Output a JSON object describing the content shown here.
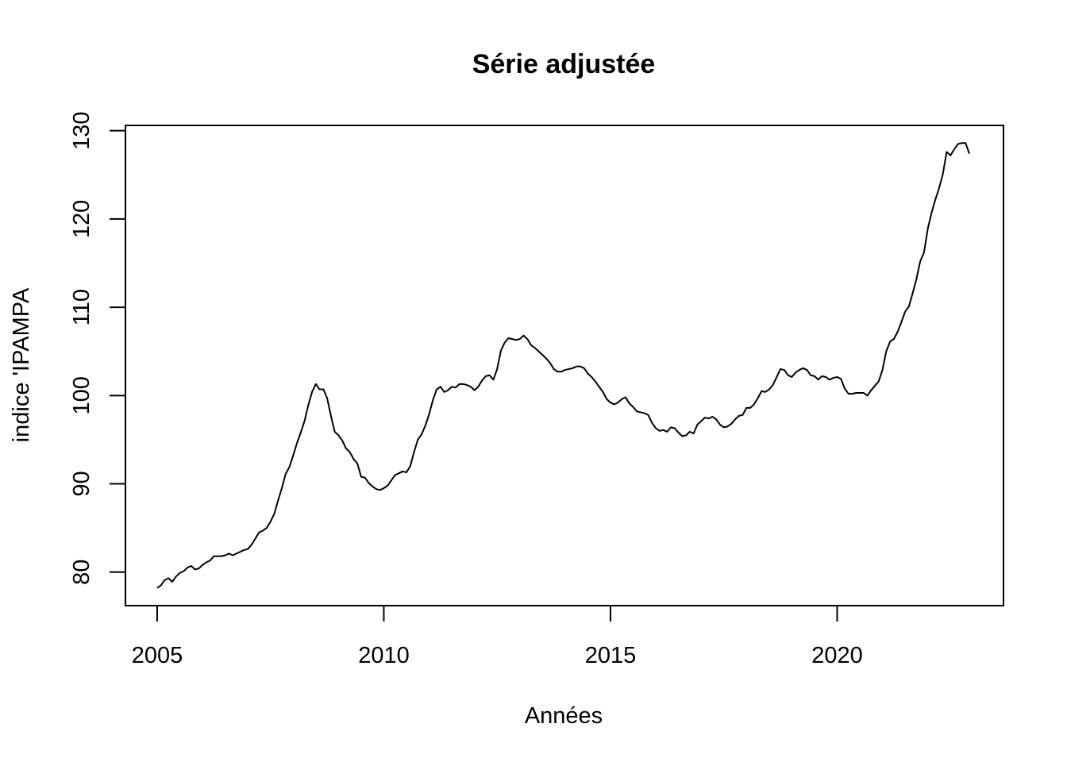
{
  "chart_data": {
    "type": "line",
    "title": "Série adjustée",
    "xlabel": "Années",
    "ylabel": "indice 'IPAMPA",
    "xlim": [
      2004.3,
      2023.67
    ],
    "ylim": [
      76.2,
      130.6
    ],
    "x_ticks": [
      2005,
      2010,
      2015,
      2020
    ],
    "x_tick_labels": [
      "2005",
      "2010",
      "2015",
      "2020"
    ],
    "y_ticks": [
      80,
      90,
      100,
      110,
      120,
      130
    ],
    "y_tick_labels": [
      "80",
      "90",
      "100",
      "110",
      "120",
      "130"
    ],
    "grid": false,
    "legend": "none",
    "line_color": "#000000",
    "series": [
      {
        "x_start": 2005.0,
        "x_step": 0.083333,
        "values": [
          78.2,
          78.5,
          79.1,
          79.3,
          78.9,
          79.5,
          79.9,
          80.1,
          80.5,
          80.7,
          80.3,
          80.4,
          80.8,
          81.1,
          81.3,
          81.8,
          81.8,
          81.8,
          81.9,
          82.1,
          81.9,
          82.1,
          82.3,
          82.5,
          82.6,
          83.1,
          83.8,
          84.5,
          84.7,
          85.0,
          85.7,
          86.6,
          88.1,
          89.5,
          91.1,
          91.9,
          93.2,
          94.6,
          95.8,
          97.1,
          98.9,
          100.4,
          101.3,
          100.7,
          100.7,
          99.7,
          97.7,
          95.9,
          95.5,
          94.9,
          94.0,
          93.6,
          92.8,
          92.3,
          90.8,
          90.7,
          90.1,
          89.7,
          89.4,
          89.3,
          89.5,
          89.8,
          90.4,
          91.0,
          91.2,
          91.4,
          91.3,
          92.0,
          93.6,
          95.0,
          95.6,
          96.6,
          97.9,
          99.5,
          100.7,
          101.0,
          100.4,
          100.6,
          101.0,
          100.9,
          101.3,
          101.3,
          101.2,
          101.0,
          100.6,
          101.0,
          101.7,
          102.2,
          102.3,
          101.8,
          103.0,
          105.1,
          106.0,
          106.5,
          106.4,
          106.3,
          106.4,
          106.8,
          106.4,
          105.7,
          105.4,
          105.0,
          104.6,
          104.2,
          103.7,
          103.0,
          102.7,
          102.7,
          102.9,
          103.0,
          103.1,
          103.3,
          103.3,
          103.1,
          102.5,
          102.1,
          101.6,
          101.0,
          100.4,
          99.6,
          99.2,
          99.0,
          99.2,
          99.6,
          99.8,
          99.1,
          98.7,
          98.2,
          98.1,
          98.0,
          97.8,
          96.9,
          96.3,
          96.0,
          96.1,
          95.9,
          96.4,
          96.3,
          95.8,
          95.4,
          95.5,
          95.9,
          95.7,
          96.7,
          97.1,
          97.5,
          97.4,
          97.6,
          97.3,
          96.7,
          96.4,
          96.5,
          96.8,
          97.3,
          97.7,
          97.8,
          98.6,
          98.6,
          99.0,
          99.7,
          100.5,
          100.4,
          100.7,
          101.2,
          102.1,
          103.0,
          102.9,
          102.3,
          102.1,
          102.6,
          102.9,
          103.1,
          102.9,
          102.3,
          102.2,
          101.8,
          102.2,
          102.1,
          101.8,
          102.0,
          102.1,
          101.9,
          100.8,
          100.2,
          100.2,
          100.3,
          100.3,
          100.3,
          100.0,
          100.6,
          101.1,
          101.6,
          102.9,
          105.0,
          106.1,
          106.4,
          107.2,
          108.3,
          109.5,
          110.1,
          111.6,
          113.2,
          115.2,
          116.2,
          118.9,
          120.7,
          122.2,
          123.5,
          125.1,
          127.6,
          127.2,
          127.9,
          128.5,
          128.6,
          128.6,
          127.4
        ]
      }
    ]
  }
}
